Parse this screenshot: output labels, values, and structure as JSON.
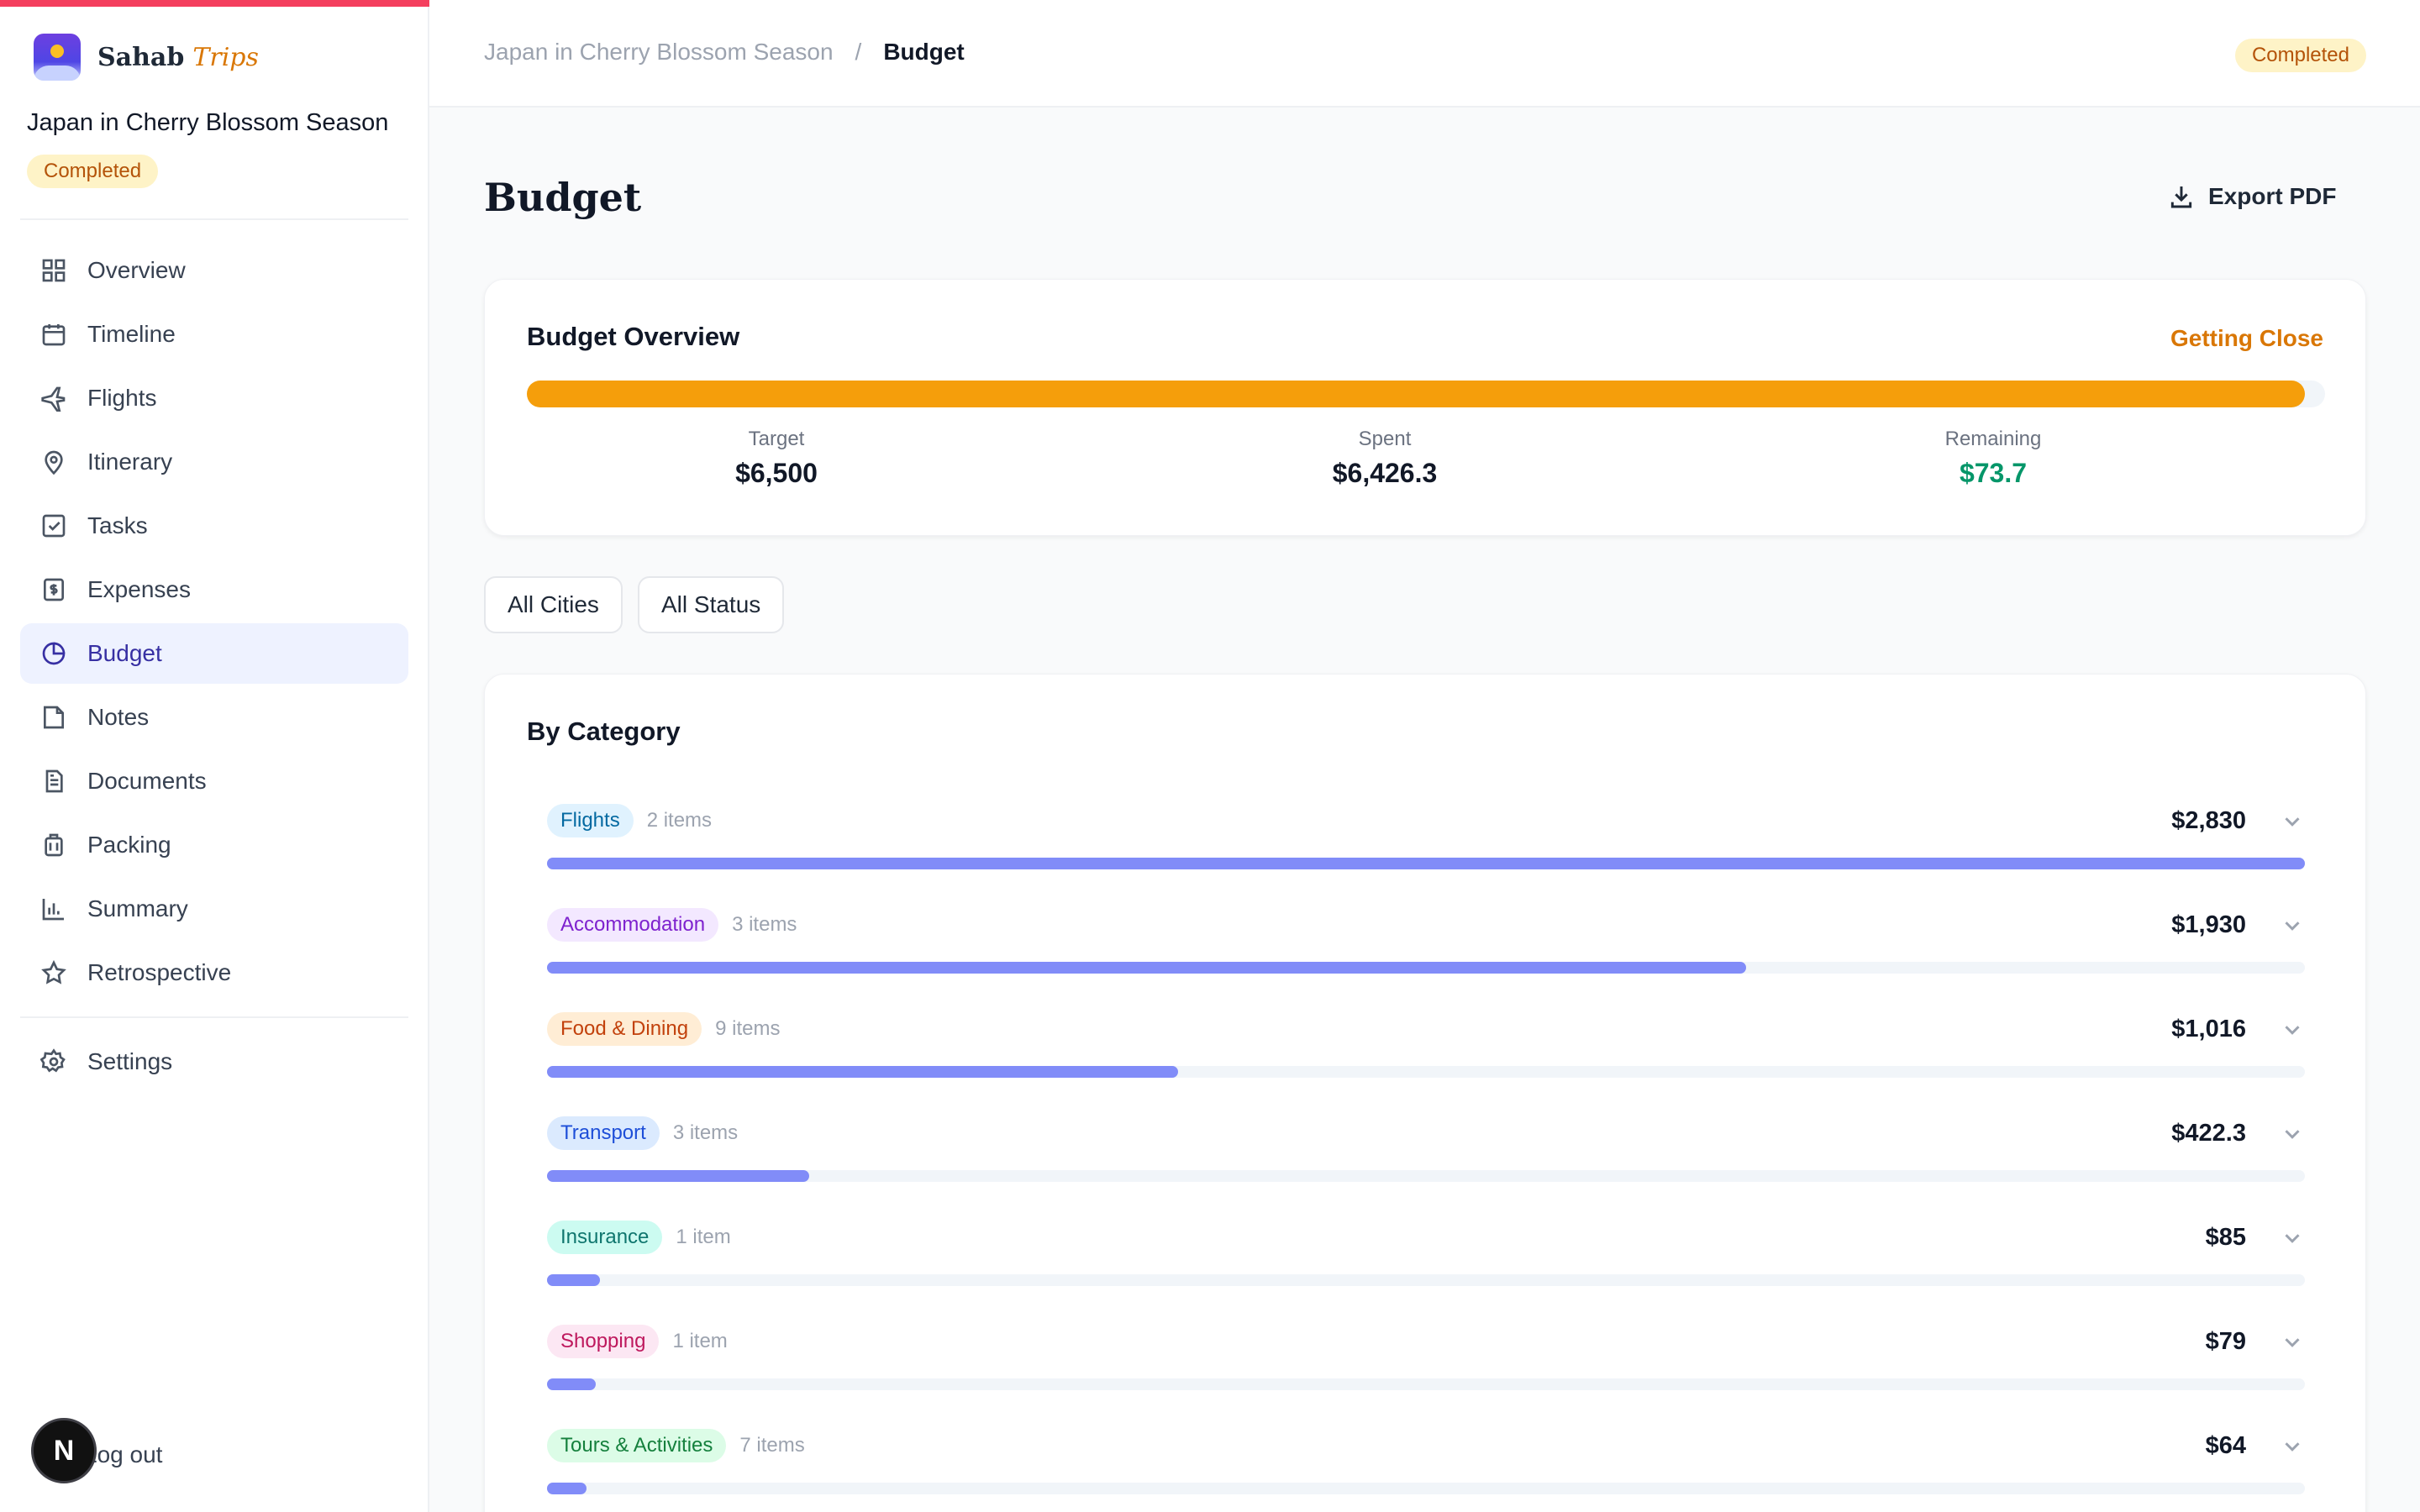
{
  "brand": {
    "name": "Sahab",
    "accent": "Trips"
  },
  "trip": {
    "name": "Japan in Cherry Blossom Season",
    "status": "Completed"
  },
  "nav": [
    {
      "label": "Overview",
      "icon": "grid-icon"
    },
    {
      "label": "Timeline",
      "icon": "calendar-icon"
    },
    {
      "label": "Flights",
      "icon": "plane-icon"
    },
    {
      "label": "Itinerary",
      "icon": "map-pin-icon"
    },
    {
      "label": "Tasks",
      "icon": "checkbox-icon"
    },
    {
      "label": "Expenses",
      "icon": "receipt-dollar-icon"
    },
    {
      "label": "Budget",
      "icon": "pie-chart-icon",
      "active": true
    },
    {
      "label": "Notes",
      "icon": "note-icon"
    },
    {
      "label": "Documents",
      "icon": "document-icon"
    },
    {
      "label": "Packing",
      "icon": "luggage-icon"
    },
    {
      "label": "Summary",
      "icon": "bar-chart-icon"
    },
    {
      "label": "Retrospective",
      "icon": "star-icon"
    }
  ],
  "settings_label": "Settings",
  "logout_label": "Log out",
  "fab_label": "N",
  "breadcrumb": {
    "parent": "Japan in Cherry Blossom Season",
    "separator": "/",
    "current": "Budget"
  },
  "page": {
    "title": "Budget",
    "export_label": "Export PDF"
  },
  "overview": {
    "title": "Budget Overview",
    "status": "Getting Close",
    "progress_percent": 98.9,
    "target_label": "Target",
    "target": "$6,500",
    "spent_label": "Spent",
    "spent": "$6,426.3",
    "remaining_label": "Remaining",
    "remaining": "$73.7"
  },
  "filters": {
    "cities": "All Cities",
    "status": "All Status"
  },
  "categories_title": "By Category",
  "categories": [
    {
      "name": "Flights",
      "count": "2 items",
      "amount": "$2,830",
      "value": 2830,
      "tag_bg": "#e0f2fe",
      "tag_fg": "#0369a1"
    },
    {
      "name": "Accommodation",
      "count": "3 items",
      "amount": "$1,930",
      "value": 1930,
      "tag_bg": "#f3e8ff",
      "tag_fg": "#7e22ce"
    },
    {
      "name": "Food & Dining",
      "count": "9 items",
      "amount": "$1,016",
      "value": 1016,
      "tag_bg": "#ffedd5",
      "tag_fg": "#c2410c"
    },
    {
      "name": "Transport",
      "count": "3 items",
      "amount": "$422.3",
      "value": 422.3,
      "tag_bg": "#dbeafe",
      "tag_fg": "#1d4ed8"
    },
    {
      "name": "Insurance",
      "count": "1 item",
      "amount": "$85",
      "value": 85,
      "tag_bg": "#ccfbf1",
      "tag_fg": "#0f766e"
    },
    {
      "name": "Shopping",
      "count": "1 item",
      "amount": "$79",
      "value": 79,
      "tag_bg": "#fce7f3",
      "tag_fg": "#be185d"
    },
    {
      "name": "Tours & Activities",
      "count": "7 items",
      "amount": "$64",
      "value": 64,
      "tag_bg": "#dcfce7",
      "tag_fg": "#15803d"
    }
  ],
  "colors": {
    "accent": "#3730a3",
    "bar": "#818cf8",
    "overview_bar": "#f59e0b",
    "warning": "#d97706",
    "positive": "#059669"
  }
}
